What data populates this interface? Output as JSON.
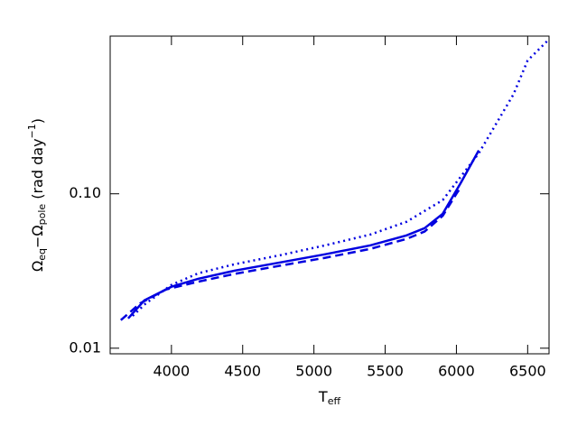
{
  "chart_data": {
    "type": "line",
    "log_y": true,
    "xlabel": [
      "T",
      "eff"
    ],
    "ylabel": [
      "Ω",
      "eq",
      "−Ω",
      "pole",
      " (rad  day",
      "−1",
      ")"
    ],
    "xlim": [
      3570,
      6650
    ],
    "ylim": [
      0.0092,
      1.05
    ],
    "xticks": [
      4000,
      4500,
      5000,
      5500,
      6000,
      6500
    ],
    "yticks": [
      0.01,
      {
        "value": 0.1,
        "label": "0.10"
      }
    ],
    "series": [
      {
        "color": "#0000e0",
        "dash": "solid",
        "x": [
          3696,
          3810,
          4000,
          4190,
          4445,
          4762,
          5080,
          5397,
          5650,
          5777,
          5904,
          6030,
          6157
        ],
        "values": [
          0.0156,
          0.0204,
          0.025,
          0.0282,
          0.0318,
          0.0359,
          0.0406,
          0.0464,
          0.0538,
          0.0599,
          0.0743,
          0.1175,
          0.191
        ]
      },
      {
        "color": "#0000e0",
        "dash": "dashed",
        "x": [
          3645,
          3780,
          3960,
          4190,
          4445,
          4762,
          5080,
          5397,
          5650,
          5777,
          5904,
          6000,
          6030
        ],
        "values": [
          0.0152,
          0.0195,
          0.024,
          0.027,
          0.0303,
          0.0342,
          0.0385,
          0.044,
          0.051,
          0.057,
          0.072,
          0.1,
          0.11
        ]
      },
      {
        "color": "#0000e0",
        "dash": "dotted",
        "x": [
          3728,
          3820,
          4000,
          4190,
          4445,
          4762,
          5080,
          5397,
          5650,
          5904,
          6157,
          6400,
          6500,
          6640
        ],
        "values": [
          0.0162,
          0.0195,
          0.0257,
          0.0306,
          0.035,
          0.04,
          0.0464,
          0.0545,
          0.0659,
          0.091,
          0.183,
          0.44,
          0.73,
          0.98
        ]
      }
    ]
  }
}
